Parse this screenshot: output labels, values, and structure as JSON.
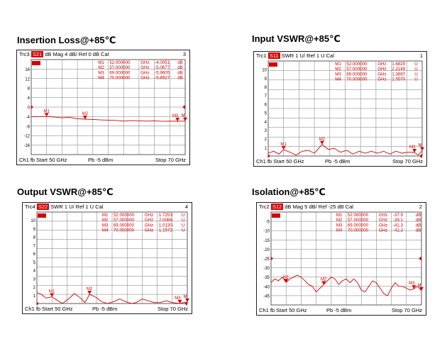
{
  "chart_data": [
    {
      "type": "line",
      "title": "Insertion Loss@+85℃",
      "header": {
        "trace": "Trc3",
        "param": "S21",
        "format": "dB Mag",
        "scale": "4 dB/",
        "ref": "Ref 0 dB",
        "cal": "Cal",
        "channel": "3"
      },
      "ytick_labels": [
        "16",
        "12",
        "8",
        "4",
        "0",
        "-4",
        "-8",
        "-12",
        "-16"
      ],
      "yrange": [
        -20,
        20
      ],
      "xrange": [
        50,
        70
      ],
      "footer": {
        "ch": "Ch1",
        "fb": "fb",
        "start": "Start  50 GHz",
        "power": "Pb  -5 dBm",
        "stop": "Stop  70 GHz"
      },
      "markers": [
        {
          "name": "M1",
          "freq": "52.000000",
          "unit": "GHz",
          "value": "-4.0051",
          "vunit": "dB",
          "label": "M1"
        },
        {
          "name": "M2",
          "freq": "57.000000",
          "unit": "GHz",
          "value": "-5.0677",
          "vunit": "dB",
          "label": "M2"
        },
        {
          "name": "M3",
          "freq": "69.000000",
          "unit": "GHz",
          "value": "-5.9605",
          "vunit": "dB",
          "label": "M3"
        },
        {
          "name": "M4",
          "freq": "70.000000",
          "unit": "GHz",
          "value": "-5.8927",
          "vunit": "dB",
          "label": "M"
        }
      ],
      "marker_points": [
        [
          52,
          -4.0
        ],
        [
          57,
          -5.07
        ],
        [
          69,
          -5.96
        ],
        [
          70,
          -5.89
        ]
      ],
      "series": [
        {
          "values": [
            [
              50,
              -4.1
            ],
            [
              51,
              -4.0
            ],
            [
              52,
              -4.0
            ],
            [
              53,
              -4.2
            ],
            [
              54,
              -4.5
            ],
            [
              55,
              -4.3
            ],
            [
              56,
              -4.9
            ],
            [
              57,
              -5.07
            ],
            [
              58,
              -5.2
            ],
            [
              59,
              -5.4
            ],
            [
              60,
              -5.5
            ],
            [
              61,
              -5.6
            ],
            [
              62,
              -5.9
            ],
            [
              63,
              -5.7
            ],
            [
              64,
              -5.8
            ],
            [
              65,
              -5.9
            ],
            [
              66,
              -5.8
            ],
            [
              67,
              -6.0
            ],
            [
              68,
              -5.9
            ],
            [
              69,
              -5.96
            ],
            [
              70,
              -5.89
            ]
          ]
        }
      ],
      "ref_level": 0
    },
    {
      "type": "line",
      "title": "Input VSWR@+85℃",
      "header": {
        "trace": "Trc1",
        "param": "S11",
        "format": "SWR",
        "scale": "1 U/",
        "ref": "Ref 1 U",
        "cal": "Cal",
        "channel": "1"
      },
      "ytick_labels": [
        "10",
        "9",
        "8",
        "7",
        "6",
        "5",
        "4",
        "3",
        "2",
        "1"
      ],
      "yrange": [
        1,
        11
      ],
      "xrange": [
        50,
        70
      ],
      "footer": {
        "ch": "Ch1",
        "fb": "fb",
        "start": "Start  50 GHz",
        "power": "Pb  -5 dBm",
        "stop": "Stop  70 GHz"
      },
      "markers": [
        {
          "name": "M1",
          "freq": "52.000000",
          "unit": "GHz",
          "value": "1.6829",
          "vunit": "U",
          "label": "M1"
        },
        {
          "name": "M2",
          "freq": "57.000000",
          "unit": "GHz",
          "value": "2.2149",
          "vunit": "U",
          "label": "M2"
        },
        {
          "name": "M3",
          "freq": "69.000000",
          "unit": "GHz",
          "value": "1.3697",
          "vunit": "U",
          "label": "M3"
        },
        {
          "name": "M4",
          "freq": "70.000000",
          "unit": "GHz",
          "value": "1.5570",
          "vunit": "U",
          "label": "M"
        }
      ],
      "marker_points": [
        [
          52,
          1.68
        ],
        [
          57,
          2.21
        ],
        [
          69,
          1.37
        ],
        [
          70,
          1.56
        ]
      ],
      "series": [
        {
          "values": [
            [
              50,
              1.3
            ],
            [
              50.7,
              1.5
            ],
            [
              51.4,
              1.2
            ],
            [
              52,
              1.68
            ],
            [
              52.8,
              1.4
            ],
            [
              53.6,
              1.1
            ],
            [
              54.4,
              1.5
            ],
            [
              55.2,
              1.6
            ],
            [
              56,
              1.3
            ],
            [
              57,
              2.21
            ],
            [
              57.8,
              1.7
            ],
            [
              58.6,
              1.8
            ],
            [
              59.4,
              1.4
            ],
            [
              60.2,
              1.6
            ],
            [
              61,
              1.2
            ],
            [
              61.8,
              1.5
            ],
            [
              62.6,
              1.3
            ],
            [
              63.4,
              1.5
            ],
            [
              64.2,
              1.3
            ],
            [
              65,
              1.5
            ],
            [
              65.8,
              1.2
            ],
            [
              66.6,
              1.5
            ],
            [
              67.4,
              1.3
            ],
            [
              68.2,
              1.4
            ],
            [
              69,
              1.37
            ],
            [
              69.5,
              1.1
            ],
            [
              70,
              1.56
            ]
          ]
        }
      ],
      "ref_level": 1
    },
    {
      "type": "line",
      "title": "Output VSWR@+85℃",
      "header": {
        "trace": "Trc4",
        "param": "S22",
        "format": "SWR",
        "scale": "1 U/",
        "ref": "Ref 1 U",
        "cal": "Cal",
        "channel": "4"
      },
      "ytick_labels": [
        "10",
        "9",
        "8",
        "7",
        "6",
        "5",
        "4",
        "3",
        "2",
        "1"
      ],
      "yrange": [
        1,
        11
      ],
      "xrange": [
        50,
        70
      ],
      "footer": {
        "ch": "Ch1",
        "fb": "fb",
        "start": "Start  50 GHz",
        "power": "Pb  -5 dBm",
        "stop": "Stop  70 GHz"
      },
      "markers": [
        {
          "name": "M1",
          "freq": "52.000000",
          "unit": "GHz",
          "value": "1.7253",
          "vunit": "U",
          "label": "M1"
        },
        {
          "name": "M2",
          "freq": "57.000000",
          "unit": "GHz",
          "value": "2.0086",
          "vunit": "U",
          "label": "M2"
        },
        {
          "name": "M3",
          "freq": "69.000000",
          "unit": "GHz",
          "value": "1.0130",
          "vunit": "U",
          "label": "M3"
        },
        {
          "name": "M4",
          "freq": "70.000000",
          "unit": "GHz",
          "value": "1.1572",
          "vunit": "U",
          "label": "M"
        }
      ],
      "marker_points": [
        [
          52,
          1.73
        ],
        [
          57,
          2.01
        ],
        [
          69,
          1.01
        ],
        [
          70,
          1.16
        ]
      ],
      "series": [
        {
          "values": [
            [
              50,
              2.2
            ],
            [
              50.6,
              2.0
            ],
            [
              51.2,
              1.6
            ],
            [
              52,
              1.73
            ],
            [
              52.8,
              1.3
            ],
            [
              53.4,
              1.0
            ],
            [
              54.2,
              1.5
            ],
            [
              55,
              2.1
            ],
            [
              55.8,
              1.6
            ],
            [
              56.4,
              1.1
            ],
            [
              57,
              2.01
            ],
            [
              57.8,
              1.7
            ],
            [
              58.6,
              1.2
            ],
            [
              59.4,
              1.0
            ],
            [
              60.2,
              1.2
            ],
            [
              61,
              1.5
            ],
            [
              61.8,
              1.2
            ],
            [
              62.6,
              1.0
            ],
            [
              63.2,
              1.1
            ],
            [
              64,
              1.5
            ],
            [
              64.8,
              1.3
            ],
            [
              65.6,
              1.1
            ],
            [
              66.4,
              1.1
            ],
            [
              67.2,
              1.3
            ],
            [
              68,
              1.1
            ],
            [
              69,
              1.01
            ],
            [
              69.5,
              1.1
            ],
            [
              70,
              1.16
            ]
          ]
        }
      ],
      "ref_level": 1
    },
    {
      "type": "line",
      "title": "Isolation@+85℃",
      "header": {
        "trace": "Trc2",
        "param": "S12",
        "format": "dB Mag",
        "scale": "5 dB/",
        "ref": "Ref -25 dB",
        "cal": "Cal",
        "channel": "2"
      },
      "ytick_labels": [
        "-5",
        "-10",
        "-15",
        "-20",
        "-25",
        "-30",
        "-35",
        "-40",
        "-45"
      ],
      "yrange": [
        -50,
        0
      ],
      "xrange": [
        50,
        70
      ],
      "footer": {
        "ch": "Ch1",
        "fb": "fb",
        "start": "Start  50 GHz",
        "power": "Pb  -5 dBm",
        "stop": "Stop  70 GHz"
      },
      "markers": [
        {
          "name": "M1",
          "freq": "52.000000",
          "unit": "GHz",
          "value": "-37.9",
          "vunit": "dB",
          "label": "M1"
        },
        {
          "name": "M2",
          "freq": "57.000000",
          "unit": "GHz",
          "value": "-39.1",
          "vunit": "dB",
          "label": "M2"
        },
        {
          "name": "M3",
          "freq": "69.000000",
          "unit": "GHz",
          "value": "-41.3",
          "vunit": "dB",
          "label": "M3"
        },
        {
          "name": "M4",
          "freq": "70.000000",
          "unit": "GHz",
          "value": "-42.3",
          "vunit": "dB",
          "label": "M"
        }
      ],
      "marker_points": [
        [
          52,
          -37.9
        ],
        [
          57,
          -39.1
        ],
        [
          69,
          -41.3
        ],
        [
          70,
          -42.3
        ]
      ],
      "series": [
        {
          "values": [
            [
              50,
              -38
            ],
            [
              50.5,
              -36
            ],
            [
              51,
              -37
            ],
            [
              51.5,
              -35
            ],
            [
              52,
              -37.9
            ],
            [
              52.5,
              -36
            ],
            [
              53,
              -35
            ],
            [
              53.5,
              -34
            ],
            [
              54,
              -35
            ],
            [
              54.5,
              -37
            ],
            [
              55,
              -39
            ],
            [
              55.5,
              -40
            ],
            [
              56,
              -43
            ],
            [
              56.5,
              -41
            ],
            [
              57,
              -39.1
            ],
            [
              57.5,
              -37
            ],
            [
              58,
              -35
            ],
            [
              58.5,
              -36
            ],
            [
              59,
              -39
            ],
            [
              59.5,
              -37
            ],
            [
              60,
              -36
            ],
            [
              60.5,
              -38
            ],
            [
              61,
              -36
            ],
            [
              61.5,
              -38
            ],
            [
              62,
              -42
            ],
            [
              62.5,
              -43
            ],
            [
              63,
              -40
            ],
            [
              63.5,
              -37
            ],
            [
              64,
              -38
            ],
            [
              64.5,
              -41
            ],
            [
              65,
              -44
            ],
            [
              65.5,
              -45
            ],
            [
              66,
              -41
            ],
            [
              66.5,
              -38
            ],
            [
              67,
              -40
            ],
            [
              67.5,
              -40
            ],
            [
              68,
              -41
            ],
            [
              68.5,
              -42
            ],
            [
              69,
              -41.3
            ],
            [
              69.5,
              -40
            ],
            [
              70,
              -42.3
            ]
          ]
        }
      ],
      "ref_level": -25
    }
  ]
}
